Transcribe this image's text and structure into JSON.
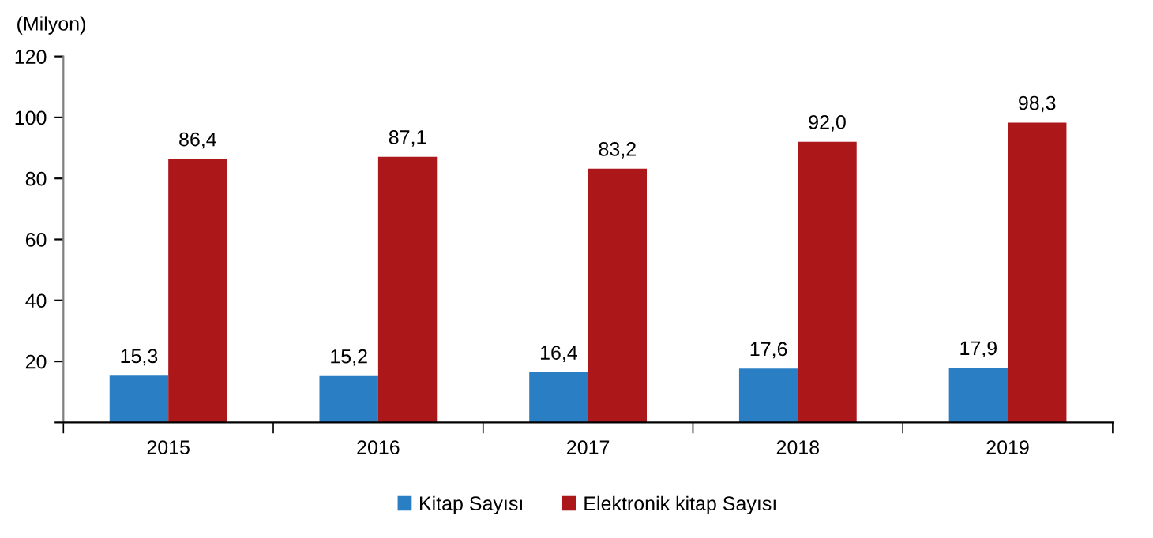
{
  "chart_data": {
    "type": "bar",
    "ylabel": "(Milyon)",
    "categories": [
      "2015",
      "2016",
      "2017",
      "2018",
      "2019"
    ],
    "series": [
      {
        "name": "Kitap Sayısı",
        "color": "#2a7fc4",
        "values": [
          15.3,
          15.2,
          16.4,
          17.6,
          17.9
        ],
        "value_labels": [
          "15,3",
          "15,2",
          "16,4",
          "17,6",
          "17,9"
        ]
      },
      {
        "name": "Elektronik kitap Sayısı",
        "color": "#ac1719",
        "values": [
          86.4,
          87.1,
          83.2,
          92.0,
          98.3
        ],
        "value_labels": [
          "86,4",
          "87,1",
          "83,2",
          "92,0",
          "98,3"
        ]
      }
    ],
    "ylim": [
      0,
      120
    ],
    "yticks": [
      {
        "value": 0,
        "label": null
      },
      20,
      40,
      60,
      80,
      100,
      120
    ],
    "grid": false,
    "legend": "bottom"
  }
}
